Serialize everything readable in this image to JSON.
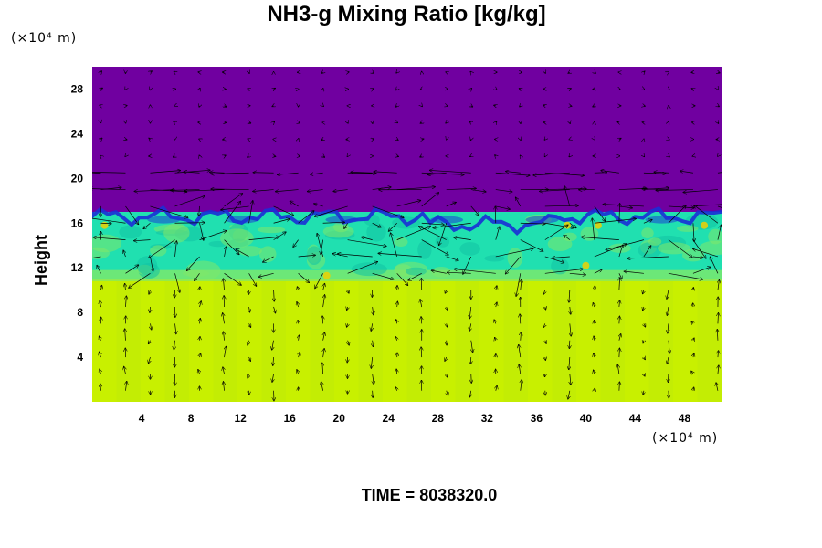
{
  "chart_data": {
    "type": "heatmap",
    "title": "NH3-g Mixing Ratio [kg/kg]",
    "ylabel": "Height",
    "xlabel": "",
    "x_unit": "(×10⁴ m)",
    "y_unit": "(×10⁴ m)",
    "xlim": [
      0,
      51
    ],
    "ylim": [
      0,
      30
    ],
    "xticks": [
      4,
      8,
      12,
      16,
      20,
      24,
      28,
      32,
      36,
      40,
      44,
      48
    ],
    "yticks": [
      4,
      8,
      12,
      16,
      20,
      24,
      28
    ],
    "layers": [
      {
        "name": "upper",
        "y_range": [
          17,
          30
        ],
        "color": "#7000a0"
      },
      {
        "name": "cloud",
        "y_range": [
          11,
          17
        ],
        "color": "#20e0b0"
      },
      {
        "name": "lower",
        "y_range": [
          0,
          11
        ],
        "color": "#c8f000"
      }
    ],
    "vectors": true,
    "footer": "TIME = 8038320.0"
  },
  "colors": {
    "upper": "#7000a0",
    "boundary": "#1a2fd6",
    "cloud": "#24e8b2",
    "cloud_dark": "#12c3a4",
    "transition": "#7fe86a",
    "lower": "#ccf005",
    "lower_alt": "#bdea08",
    "spot": "#f0d000"
  }
}
